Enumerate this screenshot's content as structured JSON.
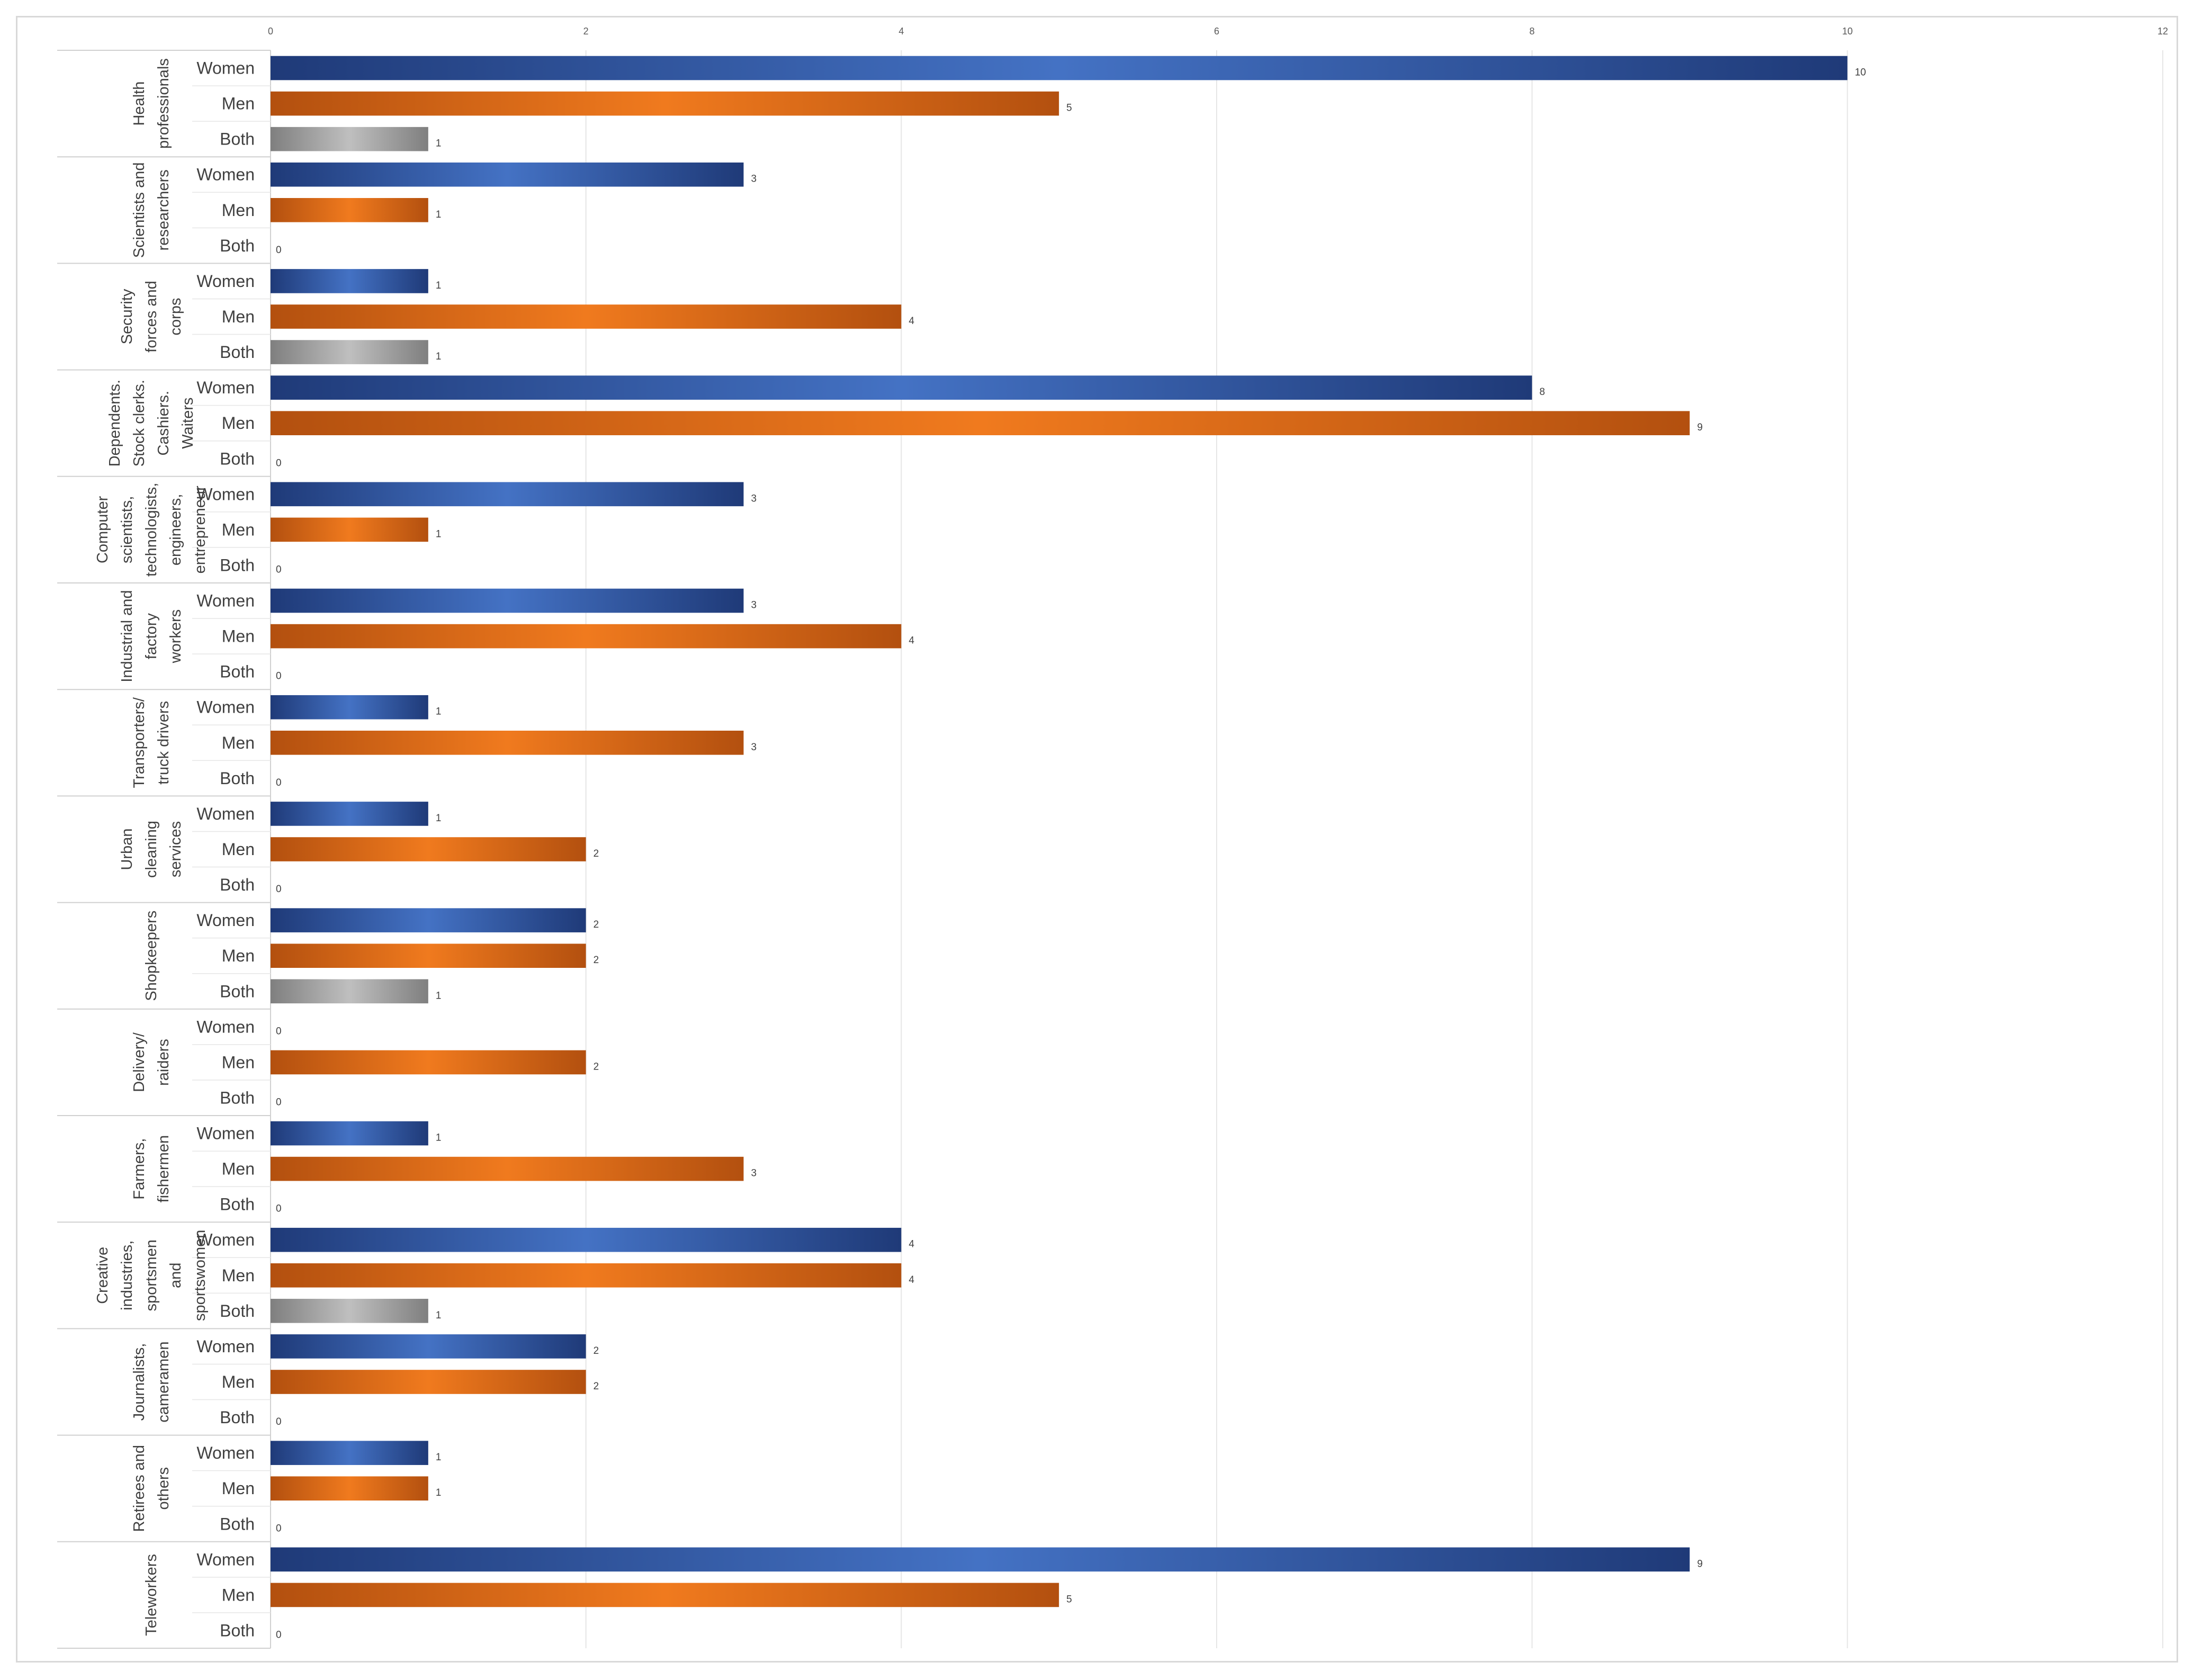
{
  "chart_data": {
    "type": "bar",
    "orientation": "horizontal",
    "title": "",
    "xlabel": "",
    "ylabel": "",
    "xlim": [
      0,
      12
    ],
    "xticks": [
      0,
      2,
      4,
      6,
      8,
      10,
      12
    ],
    "x_axis_position": "top",
    "grid": true,
    "series_labels": [
      "Women",
      "Men",
      "Both"
    ],
    "colors": {
      "Women": "#2f5597",
      "Men": "#c55a11",
      "Both": "#8c8c8c"
    },
    "groups": [
      {
        "label": "Health professionals",
        "lines": [
          "Health",
          "professionals"
        ],
        "values": [
          10,
          5,
          1
        ]
      },
      {
        "label": "Scientists and researchers",
        "lines": [
          "Scientists and",
          "researchers"
        ],
        "values": [
          3,
          1,
          0
        ]
      },
      {
        "label": "Security forces and corps",
        "lines": [
          "Security",
          "forces and",
          "corps"
        ],
        "values": [
          1,
          4,
          1
        ]
      },
      {
        "label": "Dependents. Stock clerks. Cashiers. Waiters",
        "lines": [
          "Dependents.",
          "Stock clerks.",
          "Cashiers.",
          "Waiters"
        ],
        "values": [
          8,
          9,
          0
        ]
      },
      {
        "label": "Computer scientists, technologists, engineers, entrepreneur",
        "lines": [
          "Computer",
          "scientists,",
          "technologists,",
          "engineers,",
          "entrepreneur"
        ],
        "values": [
          3,
          1,
          0
        ]
      },
      {
        "label": "Industrial and factory workers",
        "lines": [
          "Industrial and",
          "factory",
          "workers"
        ],
        "values": [
          3,
          4,
          0
        ]
      },
      {
        "label": "Transporters/ truck drivers",
        "lines": [
          "Transporters/",
          "truck drivers"
        ],
        "values": [
          1,
          3,
          0
        ]
      },
      {
        "label": "Urban cleaning services",
        "lines": [
          "Urban",
          "cleaning",
          "services"
        ],
        "values": [
          1,
          2,
          0
        ]
      },
      {
        "label": "Shopkeepers",
        "lines": [
          "Shopkeepers"
        ],
        "values": [
          2,
          2,
          1
        ]
      },
      {
        "label": "Delivery/ raiders",
        "lines": [
          "Delivery/",
          "raiders"
        ],
        "values": [
          0,
          2,
          0
        ]
      },
      {
        "label": "Farmers, fishermen",
        "lines": [
          "Farmers,",
          "fishermen"
        ],
        "values": [
          1,
          3,
          0
        ]
      },
      {
        "label": "Creative industries, sportsmen and sportswomen",
        "lines": [
          "Creative",
          "industries,",
          "sportsmen",
          "and",
          "sportswomen"
        ],
        "values": [
          4,
          4,
          1
        ]
      },
      {
        "label": "Journalists, cameramen",
        "lines": [
          "Journalists,",
          "cameramen"
        ],
        "values": [
          2,
          2,
          0
        ]
      },
      {
        "label": "Retirees and others",
        "lines": [
          "Retirees and",
          "others"
        ],
        "values": [
          1,
          1,
          0
        ]
      },
      {
        "label": "Teleworkers",
        "lines": [
          "Teleworkers"
        ],
        "values": [
          9,
          5,
          0
        ]
      }
    ]
  }
}
